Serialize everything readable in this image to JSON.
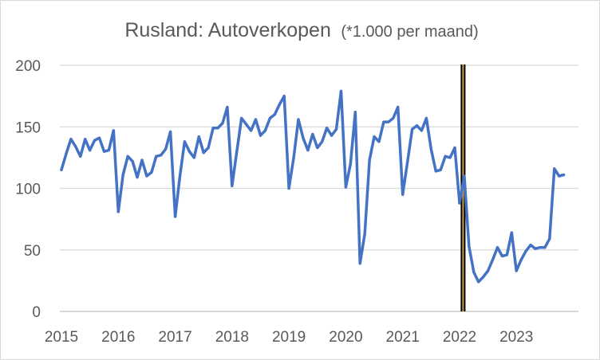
{
  "chart_data": {
    "type": "line",
    "title": "Rusland: Autoverkopen",
    "subtitle": "(*1.000 per maand)",
    "xlabel": "",
    "ylabel": "",
    "ylim": [
      0,
      200
    ],
    "yticks": [
      0,
      50,
      100,
      150,
      200
    ],
    "xticks": [
      "2015",
      "2016",
      "2017",
      "2018",
      "2019",
      "2020",
      "2021",
      "2022",
      "2023"
    ],
    "x_start": "2015-01",
    "grid": true,
    "legend": "none",
    "line_color": "#4472C4",
    "marker_line": {
      "x": "2022-02",
      "color": "#000000",
      "inner_color": "#C9A04A"
    },
    "series": [
      {
        "values": [
          115,
          128,
          140,
          134,
          126,
          140,
          131,
          139,
          141,
          130,
          131,
          147,
          81,
          111,
          126,
          122,
          109,
          123,
          110,
          113,
          126,
          127,
          132,
          146,
          77,
          110,
          138,
          130,
          125,
          142,
          129,
          133,
          149,
          149,
          153,
          166,
          102,
          130,
          157,
          152,
          147,
          156,
          143,
          147,
          157,
          160,
          168,
          175,
          100,
          125,
          156,
          141,
          131,
          144,
          133,
          138,
          149,
          143,
          148,
          179,
          101,
          120,
          162,
          39,
          63,
          123,
          142,
          138,
          154,
          154,
          157,
          166,
          95,
          121,
          148,
          151,
          147,
          157,
          132,
          114,
          115,
          126,
          125,
          133,
          88,
          110,
          53,
          32,
          24,
          28,
          33,
          42,
          52,
          45,
          46,
          64,
          33,
          42,
          49,
          54,
          51,
          52,
          52,
          59,
          116,
          110,
          111
        ]
      }
    ]
  }
}
